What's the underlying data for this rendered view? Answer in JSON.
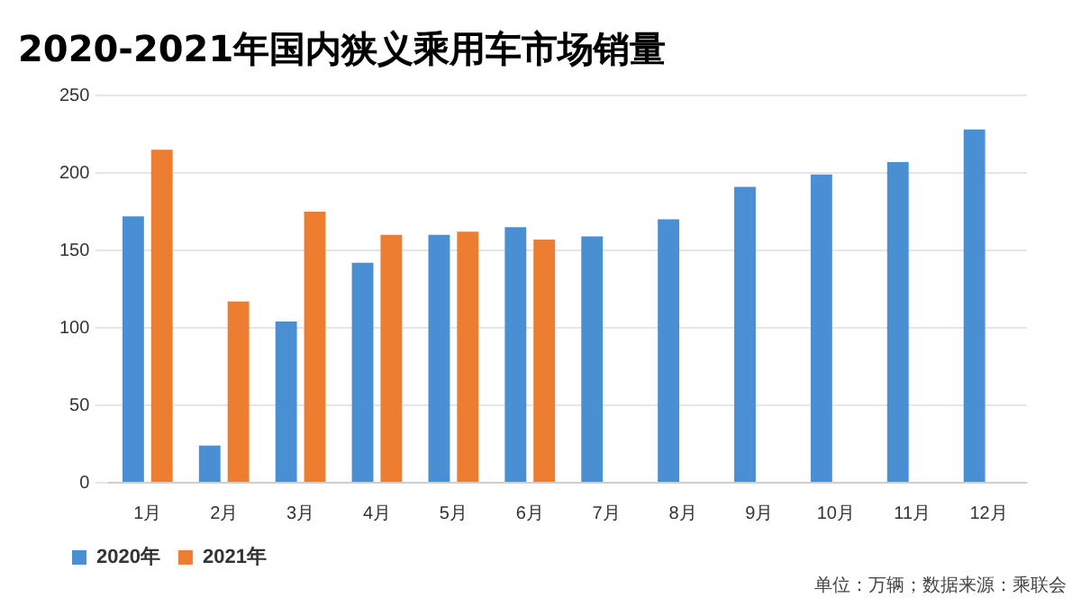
{
  "chart_data": {
    "type": "bar",
    "title": "2020-2021年国内狭义乘用车市场销量",
    "categories": [
      "1月",
      "2月",
      "3月",
      "4月",
      "5月",
      "6月",
      "7月",
      "8月",
      "9月",
      "10月",
      "11月",
      "12月"
    ],
    "series": [
      {
        "name": "2020年",
        "color": "#4a8fd4",
        "values": [
          172,
          24,
          104,
          142,
          160,
          165,
          159,
          170,
          191,
          199,
          207,
          228
        ]
      },
      {
        "name": "2021年",
        "color": "#ed7d31",
        "values": [
          215,
          117,
          175,
          160,
          162,
          157,
          null,
          null,
          null,
          null,
          null,
          null
        ]
      }
    ],
    "ylim": [
      0,
      250
    ],
    "yticks": [
      0,
      50,
      100,
      150,
      200,
      250
    ],
    "grid": "y",
    "legend": "bottom",
    "annotations": [
      "单位：万辆；数据来源：乘联会"
    ]
  }
}
